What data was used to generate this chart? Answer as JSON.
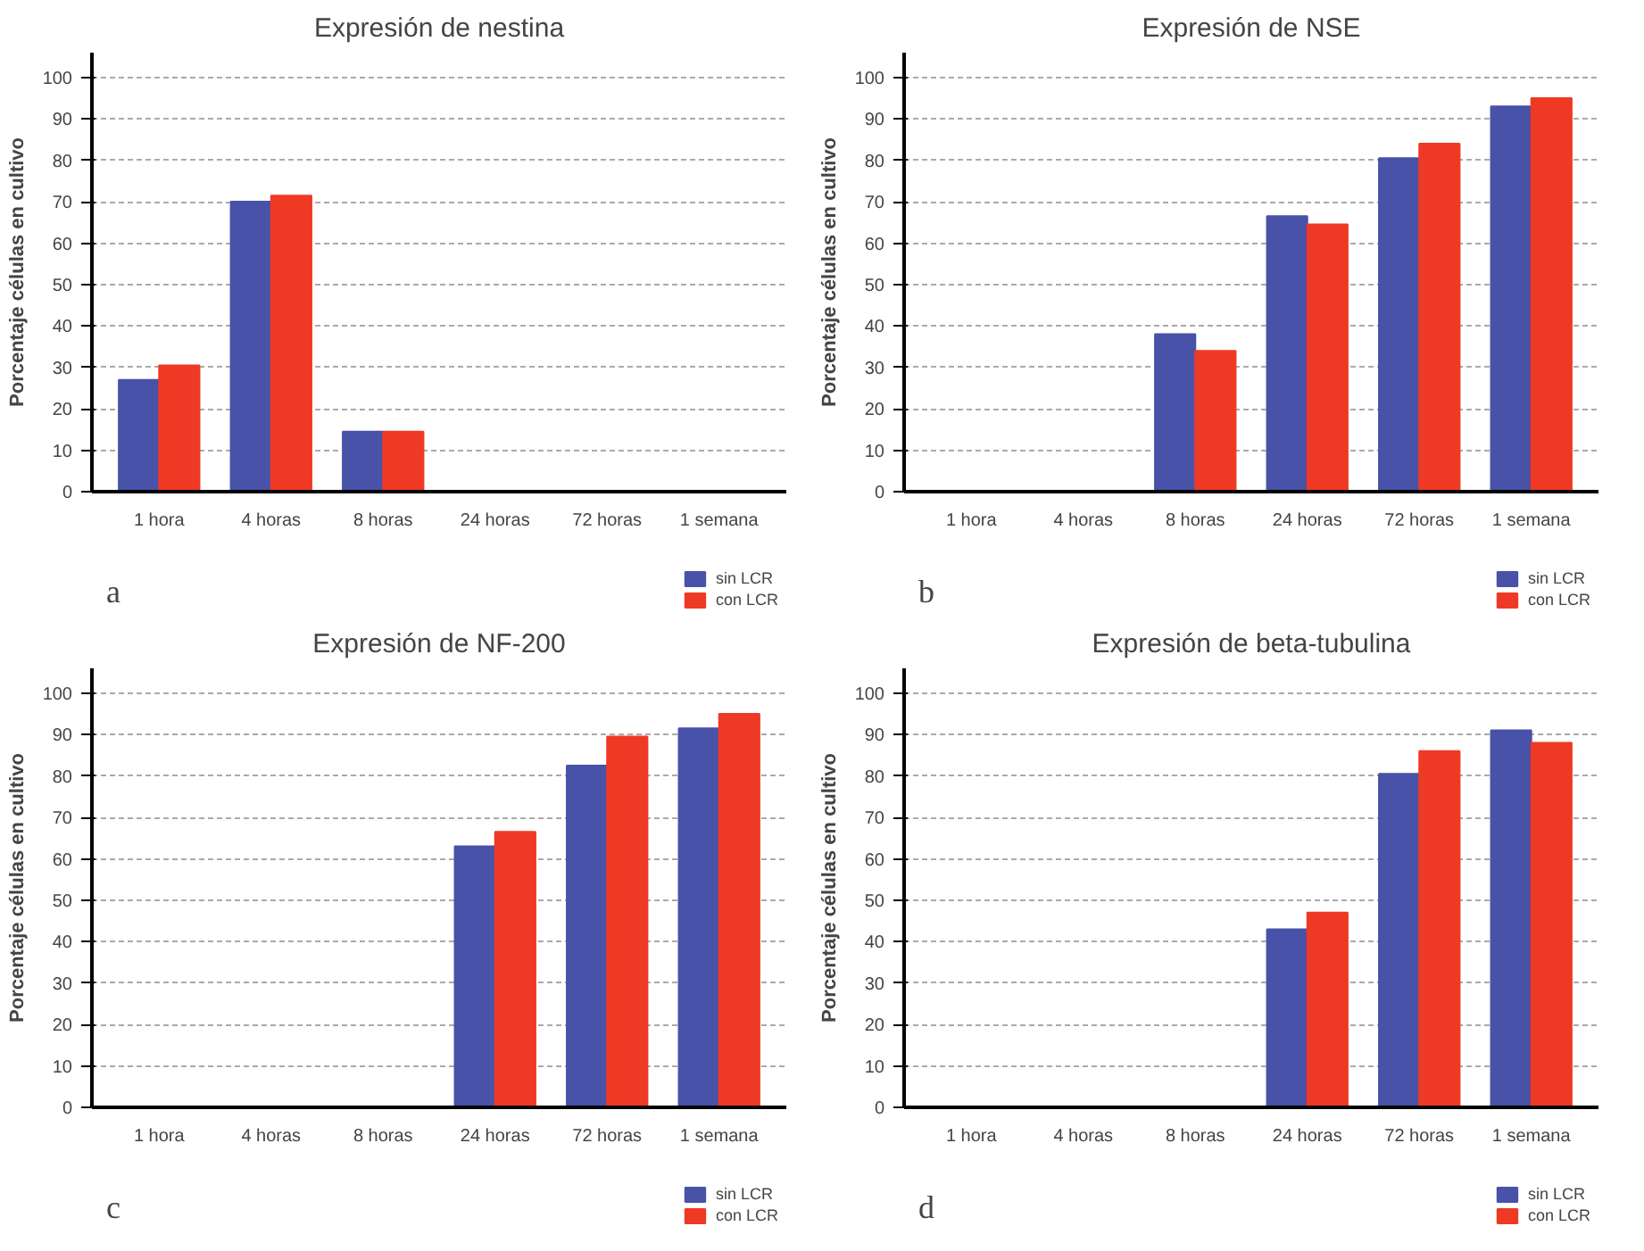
{
  "chart_data": [
    {
      "type": "bar",
      "title": "Expresión de nestina",
      "ylabel": "Porcentaje células en cultivo",
      "annotations": [
        "a"
      ],
      "categories": [
        "1 hora",
        "4 horas",
        "8 horas",
        "24 horas",
        "72 horas",
        "1 semana"
      ],
      "ylim": [
        0,
        106
      ],
      "yticks": [
        0,
        10,
        20,
        30,
        40,
        50,
        60,
        70,
        80,
        90,
        100
      ],
      "grid": "y",
      "legend": "bottom right",
      "series": [
        {
          "name": "sin LCR",
          "color": "#4752a8",
          "values": [
            27,
            70,
            14.5,
            0,
            0,
            0
          ]
        },
        {
          "name": "con LCR",
          "color": "#ee3a24",
          "values": [
            30.5,
            71.5,
            14.5,
            0,
            0,
            0
          ]
        }
      ]
    },
    {
      "type": "bar",
      "title": "Expresión de NSE",
      "ylabel": "Porcentaje células en cultivo",
      "annotations": [
        "b"
      ],
      "categories": [
        "1 hora",
        "4 horas",
        "8 horas",
        "24 horas",
        "72 horas",
        "1 semana"
      ],
      "ylim": [
        0,
        106
      ],
      "yticks": [
        0,
        10,
        20,
        30,
        40,
        50,
        60,
        70,
        80,
        90,
        100
      ],
      "grid": "y",
      "legend": "bottom right",
      "series": [
        {
          "name": "sin LCR",
          "color": "#4752a8",
          "values": [
            0,
            0,
            38,
            66.5,
            80.5,
            93
          ]
        },
        {
          "name": "con LCR",
          "color": "#ee3a24",
          "values": [
            0,
            0,
            34,
            64.5,
            84,
            95
          ]
        }
      ]
    },
    {
      "type": "bar",
      "title": "Expresión de NF-200",
      "ylabel": "Porcentaje células en cultivo",
      "annotations": [
        "c"
      ],
      "categories": [
        "1 hora",
        "4 horas",
        "8 horas",
        "24 horas",
        "72 horas",
        "1 semana"
      ],
      "ylim": [
        0,
        106
      ],
      "yticks": [
        0,
        10,
        20,
        30,
        40,
        50,
        60,
        70,
        80,
        90,
        100
      ],
      "grid": "y",
      "legend": "bottom right",
      "series": [
        {
          "name": "sin LCR",
          "color": "#4752a8",
          "values": [
            0,
            0,
            0,
            63,
            82.5,
            91.5
          ]
        },
        {
          "name": "con LCR",
          "color": "#ee3a24",
          "values": [
            0,
            0,
            0,
            66.5,
            89.5,
            95
          ]
        }
      ]
    },
    {
      "type": "bar",
      "title": "Expresión de beta-tubulina",
      "ylabel": "Porcentaje células en cultivo",
      "annotations": [
        "d"
      ],
      "categories": [
        "1 hora",
        "4 horas",
        "8 horas",
        "24 horas",
        "72 horas",
        "1 semana"
      ],
      "ylim": [
        0,
        106
      ],
      "yticks": [
        0,
        10,
        20,
        30,
        40,
        50,
        60,
        70,
        80,
        90,
        100
      ],
      "grid": "y",
      "legend": "bottom right",
      "series": [
        {
          "name": "sin LCR",
          "color": "#4752a8",
          "values": [
            0,
            0,
            0,
            43,
            80.5,
            91
          ]
        },
        {
          "name": "con LCR",
          "color": "#ee3a24",
          "values": [
            0,
            0,
            0,
            47,
            86,
            88
          ]
        }
      ]
    }
  ]
}
